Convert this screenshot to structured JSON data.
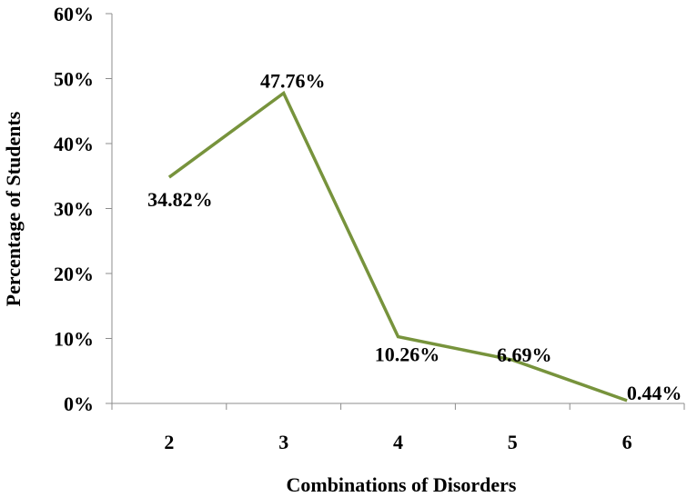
{
  "chart_data": {
    "type": "line",
    "title": "",
    "xlabel": "Combinations of Disorders",
    "ylabel": "Percentage of Students",
    "categories": [
      "2",
      "3",
      "4",
      "5",
      "6"
    ],
    "series": [
      {
        "values": [
          34.82,
          47.76,
          10.26,
          6.69,
          0.44
        ],
        "labels": [
          "34.82%",
          "47.76%",
          "10.26%",
          "6.69%",
          "0.44%"
        ],
        "color": "#77933c"
      }
    ],
    "ylim": [
      0,
      60
    ],
    "yticks": [
      "0%",
      "10%",
      "20%",
      "30%",
      "40%",
      "50%",
      "60%"
    ],
    "grid": false,
    "legend": "none"
  }
}
